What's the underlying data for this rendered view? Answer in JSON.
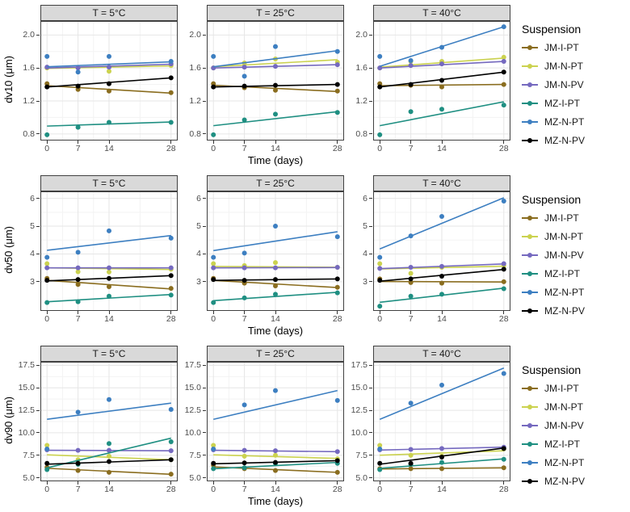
{
  "legend": {
    "title": "Suspension",
    "entries": [
      {
        "name": "JM-I-PT",
        "color": "#8a6d1f"
      },
      {
        "name": "JM-N-PT",
        "color": "#cbd24f"
      },
      {
        "name": "JM-N-PV",
        "color": "#7569bf"
      },
      {
        "name": "MZ-I-PT",
        "color": "#1f8f82"
      },
      {
        "name": "MZ-N-PT",
        "color": "#3d7fc1"
      },
      {
        "name": "MZ-N-PV",
        "color": "#000000"
      }
    ]
  },
  "chart_data": [
    {
      "type": "scatter",
      "ylabel": "dv10 (μm)",
      "xlabel": "Time (days)",
      "x": [
        0,
        7,
        14,
        28
      ],
      "x_ticks": [
        0,
        7,
        14,
        28
      ],
      "xlim": [
        -1.5,
        29.5
      ],
      "y_ticks": [
        0.8,
        1.2,
        1.6,
        2.0
      ],
      "ylim": [
        0.72,
        2.17
      ],
      "facets": [
        {
          "label": "T = 5°C",
          "series": [
            {
              "name": "JM-I-PT",
              "points": [
                1.41,
                1.34,
                1.32,
                1.3
              ],
              "trend": [
                1.385,
                1.295
              ]
            },
            {
              "name": "JM-N-PT",
              "points": [
                1.6,
                1.6,
                1.56,
                1.63
              ],
              "trend": [
                1.595,
                1.625
              ]
            },
            {
              "name": "JM-N-PV",
              "points": [
                1.61,
                1.6,
                1.61,
                1.65
              ],
              "trend": [
                1.6,
                1.645
              ]
            },
            {
              "name": "MZ-I-PT",
              "points": [
                0.79,
                0.88,
                0.94,
                0.94
              ],
              "trend": [
                0.895,
                0.945
              ]
            },
            {
              "name": "MZ-N-PT",
              "points": [
                1.74,
                1.55,
                1.74,
                1.68
              ],
              "trend": [
                1.615,
                1.675
              ]
            },
            {
              "name": "MZ-N-PV",
              "points": [
                1.37,
                1.38,
                1.41,
                1.48
              ],
              "trend": [
                1.37,
                1.48
              ]
            }
          ]
        },
        {
          "label": "T = 25°C",
          "series": [
            {
              "name": "JM-I-PT",
              "points": [
                1.41,
                1.36,
                1.33,
                1.32
              ],
              "trend": [
                1.39,
                1.315
              ]
            },
            {
              "name": "JM-N-PT",
              "points": [
                1.6,
                1.66,
                1.71,
                1.67
              ],
              "trend": [
                1.615,
                1.7
              ]
            },
            {
              "name": "JM-N-PV",
              "points": [
                1.6,
                1.61,
                1.62,
                1.64
              ],
              "trend": [
                1.6,
                1.64
              ]
            },
            {
              "name": "MZ-I-PT",
              "points": [
                0.79,
                0.97,
                1.04,
                1.06
              ],
              "trend": [
                0.9,
                1.07
              ]
            },
            {
              "name": "MZ-N-PT",
              "points": [
                1.74,
                1.5,
                1.86,
                1.8
              ],
              "trend": [
                1.615,
                1.81
              ]
            },
            {
              "name": "MZ-N-PV",
              "points": [
                1.37,
                1.38,
                1.39,
                1.4
              ],
              "trend": [
                1.37,
                1.4
              ]
            }
          ]
        },
        {
          "label": "T = 40°C",
          "series": [
            {
              "name": "JM-I-PT",
              "points": [
                1.41,
                1.39,
                1.37,
                1.4
              ],
              "trend": [
                1.385,
                1.4
              ]
            },
            {
              "name": "JM-N-PT",
              "points": [
                1.6,
                1.68,
                1.68,
                1.73
              ],
              "trend": [
                1.61,
                1.72
              ]
            },
            {
              "name": "JM-N-PV",
              "points": [
                1.6,
                1.63,
                1.65,
                1.68
              ],
              "trend": [
                1.6,
                1.68
              ]
            },
            {
              "name": "MZ-I-PT",
              "points": [
                0.79,
                1.07,
                1.1,
                1.15
              ],
              "trend": [
                0.9,
                1.19
              ]
            },
            {
              "name": "MZ-N-PT",
              "points": [
                1.74,
                1.69,
                1.85,
                2.1
              ],
              "trend": [
                1.62,
                2.1
              ]
            },
            {
              "name": "MZ-N-PV",
              "points": [
                1.37,
                1.4,
                1.45,
                1.55
              ],
              "trend": [
                1.37,
                1.55
              ]
            }
          ]
        }
      ]
    },
    {
      "type": "scatter",
      "ylabel": "dv50 (μm)",
      "xlabel": "Time (days)",
      "x": [
        0,
        7,
        14,
        28
      ],
      "x_ticks": [
        0,
        7,
        14,
        28
      ],
      "xlim": [
        -1.5,
        29.5
      ],
      "y_ticks": [
        3,
        4,
        5,
        6
      ],
      "ylim": [
        1.95,
        6.25
      ],
      "facets": [
        {
          "label": "T = 5°C",
          "series": [
            {
              "name": "JM-I-PT",
              "points": [
                3.12,
                2.9,
                2.82,
                2.76
              ],
              "trend": [
                3.05,
                2.74
              ]
            },
            {
              "name": "JM-N-PT",
              "points": [
                3.65,
                3.36,
                3.35,
                3.45
              ],
              "trend": [
                3.5,
                3.44
              ]
            },
            {
              "name": "JM-N-PV",
              "points": [
                3.5,
                3.5,
                3.5,
                3.5
              ],
              "trend": [
                3.5,
                3.5
              ]
            },
            {
              "name": "MZ-I-PT",
              "points": [
                2.25,
                2.28,
                2.48,
                2.52
              ],
              "trend": [
                2.28,
                2.54
              ]
            },
            {
              "name": "MZ-N-PT",
              "points": [
                3.88,
                4.06,
                4.83,
                4.57
              ],
              "trend": [
                4.13,
                4.66
              ]
            },
            {
              "name": "MZ-N-PV",
              "points": [
                3.05,
                3.08,
                3.12,
                3.22
              ],
              "trend": [
                3.03,
                3.22
              ]
            }
          ]
        },
        {
          "label": "T = 25°C",
          "series": [
            {
              "name": "JM-I-PT",
              "points": [
                3.12,
                2.95,
                2.85,
                2.8
              ],
              "trend": [
                3.05,
                2.79
              ]
            },
            {
              "name": "JM-N-PT",
              "points": [
                3.65,
                3.58,
                3.69,
                3.52
              ],
              "trend": [
                3.55,
                3.52
              ]
            },
            {
              "name": "JM-N-PV",
              "points": [
                3.5,
                3.5,
                3.5,
                3.52
              ],
              "trend": [
                3.5,
                3.51
              ]
            },
            {
              "name": "MZ-I-PT",
              "points": [
                2.25,
                2.42,
                2.55,
                2.6
              ],
              "trend": [
                2.32,
                2.62
              ]
            },
            {
              "name": "MZ-N-PT",
              "points": [
                3.88,
                4.03,
                5.0,
                4.62
              ],
              "trend": [
                4.12,
                4.8
              ]
            },
            {
              "name": "MZ-N-PV",
              "points": [
                3.08,
                3.05,
                3.08,
                3.1
              ],
              "trend": [
                3.05,
                3.1
              ]
            }
          ]
        },
        {
          "label": "T = 40°C",
          "series": [
            {
              "name": "JM-I-PT",
              "points": [
                3.1,
                2.97,
                2.95,
                3.0
              ],
              "trend": [
                3.01,
                2.99
              ]
            },
            {
              "name": "JM-N-PT",
              "points": [
                3.65,
                3.3,
                3.52,
                3.58
              ],
              "trend": [
                3.46,
                3.56
              ]
            },
            {
              "name": "JM-N-PV",
              "points": [
                3.48,
                3.52,
                3.55,
                3.65
              ],
              "trend": [
                3.47,
                3.64
              ]
            },
            {
              "name": "MZ-I-PT",
              "points": [
                2.12,
                2.48,
                2.55,
                2.75
              ],
              "trend": [
                2.26,
                2.77
              ]
            },
            {
              "name": "MZ-N-PT",
              "points": [
                3.88,
                4.65,
                5.35,
                5.9
              ],
              "trend": [
                4.18,
                6.02
              ]
            },
            {
              "name": "MZ-N-PV",
              "points": [
                3.05,
                3.1,
                3.2,
                3.45
              ],
              "trend": [
                3.02,
                3.44
              ]
            }
          ]
        }
      ]
    },
    {
      "type": "scatter",
      "ylabel": "dv90 (μm)",
      "xlabel": "Time (days)",
      "x": [
        0,
        7,
        14,
        28
      ],
      "x_ticks": [
        0,
        7,
        14,
        28
      ],
      "xlim": [
        -1.5,
        29.5
      ],
      "y_ticks": [
        5.0,
        7.5,
        10.0,
        12.5,
        15.0,
        17.5
      ],
      "ylim": [
        4.6,
        17.9
      ],
      "facets": [
        {
          "label": "T = 5°C",
          "series": [
            {
              "name": "JM-I-PT",
              "points": [
                6.15,
                5.8,
                5.6,
                5.4
              ],
              "trend": [
                6.05,
                5.38
              ]
            },
            {
              "name": "JM-N-PT",
              "points": [
                8.6,
                7.0,
                7.4,
                7.0
              ],
              "trend": [
                7.55,
                7.0
              ]
            },
            {
              "name": "JM-N-PV",
              "points": [
                8.1,
                8.05,
                8.05,
                8.0
              ],
              "trend": [
                8.05,
                8.0
              ]
            },
            {
              "name": "MZ-I-PT",
              "points": [
                5.9,
                6.5,
                8.8,
                9.0
              ],
              "trend": [
                6.1,
                9.4
              ]
            },
            {
              "name": "MZ-N-PT",
              "points": [
                8.2,
                12.3,
                13.7,
                12.6
              ],
              "trend": [
                11.5,
                13.3
              ]
            },
            {
              "name": "MZ-N-PV",
              "points": [
                6.6,
                6.6,
                6.8,
                7.0
              ],
              "trend": [
                6.5,
                7.0
              ]
            }
          ]
        },
        {
          "label": "T = 25°C",
          "series": [
            {
              "name": "JM-I-PT",
              "points": [
                6.4,
                6.0,
                5.8,
                5.6
              ],
              "trend": [
                6.2,
                5.6
              ]
            },
            {
              "name": "JM-N-PT",
              "points": [
                8.6,
                7.4,
                7.5,
                7.1
              ],
              "trend": [
                7.55,
                7.15
              ]
            },
            {
              "name": "JM-N-PV",
              "points": [
                8.1,
                8.05,
                8.0,
                7.9
              ],
              "trend": [
                8.05,
                7.9
              ]
            },
            {
              "name": "MZ-I-PT",
              "points": [
                6.0,
                6.1,
                6.6,
                6.6
              ],
              "trend": [
                6.0,
                6.7
              ]
            },
            {
              "name": "MZ-N-PT",
              "points": [
                8.2,
                13.1,
                14.7,
                13.6
              ],
              "trend": [
                11.5,
                14.7
              ]
            },
            {
              "name": "MZ-N-PV",
              "points": [
                6.6,
                6.65,
                6.7,
                6.9
              ],
              "trend": [
                6.55,
                6.9
              ]
            }
          ]
        },
        {
          "label": "T = 40°C",
          "series": [
            {
              "name": "JM-I-PT",
              "points": [
                6.0,
                6.0,
                6.0,
                6.1
              ],
              "trend": [
                5.98,
                6.1
              ]
            },
            {
              "name": "JM-N-PT",
              "points": [
                8.6,
                7.5,
                7.4,
                8.2
              ],
              "trend": [
                7.5,
                8.0
              ]
            },
            {
              "name": "JM-N-PV",
              "points": [
                8.1,
                8.15,
                8.25,
                8.4
              ],
              "trend": [
                8.08,
                8.4
              ]
            },
            {
              "name": "MZ-I-PT",
              "points": [
                5.9,
                6.5,
                6.7,
                7.05
              ],
              "trend": [
                6.05,
                7.1
              ]
            },
            {
              "name": "MZ-N-PT",
              "points": [
                8.2,
                13.3,
                15.3,
                16.6
              ],
              "trend": [
                11.5,
                17.2
              ]
            },
            {
              "name": "MZ-N-PV",
              "points": [
                6.6,
                6.6,
                7.3,
                8.25
              ],
              "trend": [
                6.5,
                8.3
              ]
            }
          ]
        }
      ]
    }
  ]
}
